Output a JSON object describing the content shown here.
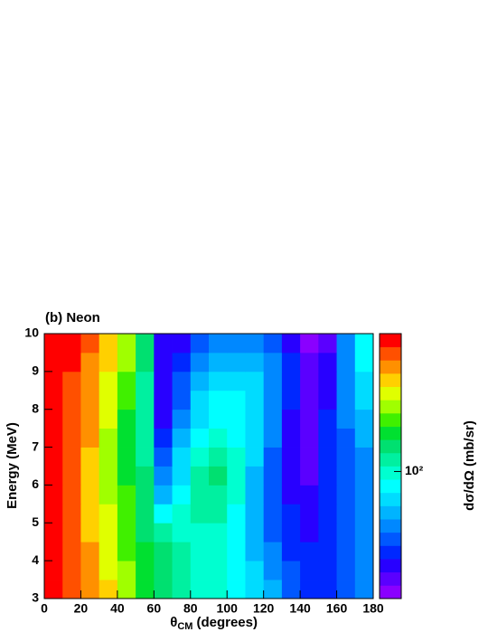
{
  "chart_data": {
    "type": "heatmap",
    "title": "(b) Neon",
    "x_label": {
      "symbol": "θ",
      "subscript": "CM",
      "text": "(degrees)"
    },
    "y_label": "Energy (MeV)",
    "z_label": "dσ/dΩ (mb/sr)",
    "xbins": [
      0,
      10,
      20,
      30,
      40,
      50,
      60,
      70,
      80,
      90,
      100,
      110,
      120,
      130,
      140,
      150,
      160,
      170,
      180
    ],
    "ybins": [
      3,
      3.5,
      4,
      4.5,
      5,
      5.5,
      6,
      6.5,
      7,
      7.5,
      8,
      8.5,
      9,
      9.5,
      10
    ],
    "xlim": [
      0,
      180
    ],
    "xticks": [
      0,
      20,
      40,
      60,
      80,
      100,
      120,
      140,
      160,
      180
    ],
    "ylim": [
      3,
      10
    ],
    "yticks": [
      3,
      4,
      5,
      6,
      7,
      8,
      9,
      10
    ],
    "zlim": [
      25,
      450
    ],
    "zlog": true,
    "zticks": [
      {
        "value": 100,
        "label": "10²"
      }
    ],
    "palette": [
      "#8a00ff",
      "#5a00ff",
      "#2800ff",
      "#0028ff",
      "#0058ff",
      "#0088ff",
      "#00b4ff",
      "#00dcff",
      "#00ffff",
      "#00ffd0",
      "#00f0a0",
      "#00e070",
      "#00e030",
      "#40f000",
      "#a0ff00",
      "#e0ff00",
      "#ffd000",
      "#ff9000",
      "#ff5000",
      "#ff0000"
    ],
    "z": [
      [
        415,
        359,
        311,
        269,
        202,
        151,
        131,
        113,
        98,
        98,
        85,
        74,
        64,
        48,
        41,
        41,
        48,
        55
      ],
      [
        415,
        359,
        311,
        233,
        202,
        151,
        131,
        113,
        98,
        98,
        85,
        74,
        55,
        48,
        41,
        41,
        48,
        55
      ],
      [
        415,
        359,
        311,
        233,
        175,
        151,
        131,
        113,
        98,
        98,
        85,
        64,
        55,
        41,
        41,
        41,
        48,
        55
      ],
      [
        415,
        359,
        269,
        233,
        175,
        131,
        113,
        98,
        98,
        98,
        85,
        64,
        48,
        41,
        36,
        41,
        48,
        55
      ],
      [
        415,
        359,
        269,
        233,
        175,
        131,
        85,
        98,
        113,
        113,
        85,
        64,
        48,
        41,
        36,
        41,
        48,
        55
      ],
      [
        415,
        359,
        269,
        202,
        175,
        131,
        64,
        85,
        113,
        113,
        98,
        64,
        48,
        36,
        36,
        41,
        48,
        55
      ],
      [
        415,
        359,
        269,
        202,
        151,
        131,
        55,
        74,
        113,
        131,
        98,
        64,
        48,
        36,
        31,
        41,
        48,
        55
      ],
      [
        415,
        359,
        269,
        202,
        151,
        113,
        48,
        74,
        98,
        113,
        98,
        74,
        48,
        36,
        31,
        41,
        48,
        55
      ],
      [
        415,
        359,
        311,
        202,
        151,
        113,
        41,
        64,
        85,
        98,
        85,
        74,
        55,
        36,
        31,
        41,
        48,
        64
      ],
      [
        415,
        359,
        311,
        233,
        151,
        113,
        36,
        55,
        74,
        85,
        85,
        74,
        55,
        36,
        31,
        41,
        55,
        64
      ],
      [
        415,
        359,
        311,
        233,
        175,
        113,
        36,
        48,
        74,
        85,
        85,
        74,
        55,
        41,
        31,
        36,
        55,
        74
      ],
      [
        415,
        359,
        311,
        233,
        175,
        113,
        36,
        48,
        64,
        74,
        74,
        74,
        55,
        41,
        31,
        36,
        55,
        74
      ],
      [
        415,
        415,
        311,
        269,
        202,
        131,
        36,
        41,
        55,
        64,
        64,
        64,
        55,
        41,
        31,
        36,
        55,
        85
      ],
      [
        415,
        415,
        359,
        269,
        202,
        131,
        36,
        36,
        48,
        55,
        55,
        55,
        48,
        36,
        27,
        31,
        55,
        85
      ]
    ]
  }
}
